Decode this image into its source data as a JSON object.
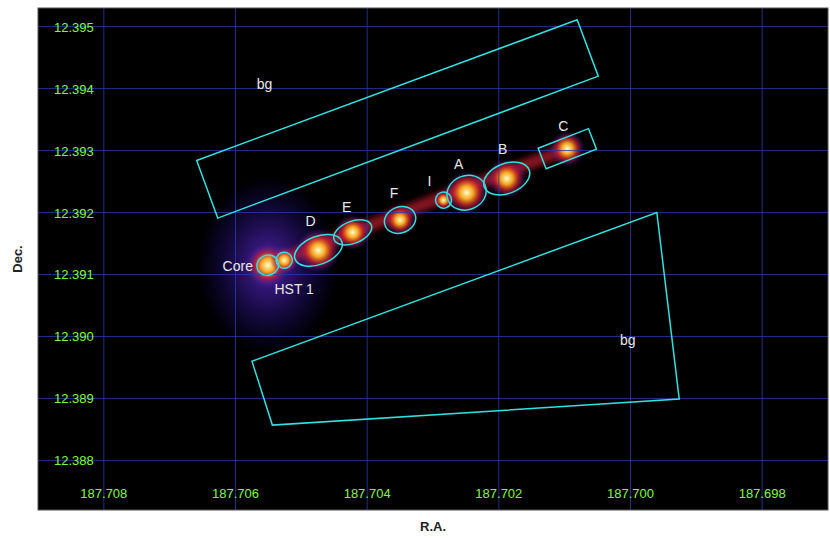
{
  "chart_data": {
    "type": "scatter",
    "x_label": "R.A.",
    "y_label": "Dec.",
    "xlim": [
      187.709,
      187.697
    ],
    "ylim": [
      12.3872,
      12.3953
    ],
    "xticks": [
      187.708,
      187.706,
      187.704,
      187.702,
      {
        "value": 187.7,
        "label": "187.700"
      },
      187.698
    ],
    "yticks": [
      12.395,
      12.394,
      12.393,
      12.392,
      12.391,
      {
        "value": 12.39,
        "label": "12.390"
      },
      12.389,
      12.388
    ],
    "grid": true,
    "color": "#33e0e0",
    "knots": {
      "labels": [
        "Core",
        "HST 1",
        "D",
        "E",
        "F",
        "I",
        "A",
        "B",
        "C"
      ],
      "x": [
        187.70551,
        187.70526,
        187.70474,
        187.70422,
        187.7035,
        187.70284,
        187.70249,
        187.70188,
        187.70096
      ],
      "y": [
        12.39115,
        12.39123,
        12.39139,
        12.39168,
        12.39188,
        12.3922,
        12.39232,
        12.39255,
        12.39303
      ],
      "markers": [
        "ellipse",
        "ellipse",
        "ellipse",
        "ellipse",
        "ellipse",
        "ellipse",
        "ellipse",
        "ellipse",
        "box"
      ]
    },
    "boxes": [
      {
        "label": "bg",
        "label_x": 187.70556,
        "label_y": 12.39399,
        "x": [
          187.70659,
          187.70081,
          187.70049,
          187.70627
        ],
        "y": [
          12.39284,
          12.39511,
          12.3942,
          12.39191
        ]
      },
      {
        "label": "bg",
        "label_x": 187.70004,
        "label_y": 12.38987,
        "x": [
          187.70575,
          187.6996,
          187.69926,
          187.70544
        ],
        "y": [
          12.3896,
          12.392,
          12.38899,
          12.38857
        ]
      }
    ]
  }
}
